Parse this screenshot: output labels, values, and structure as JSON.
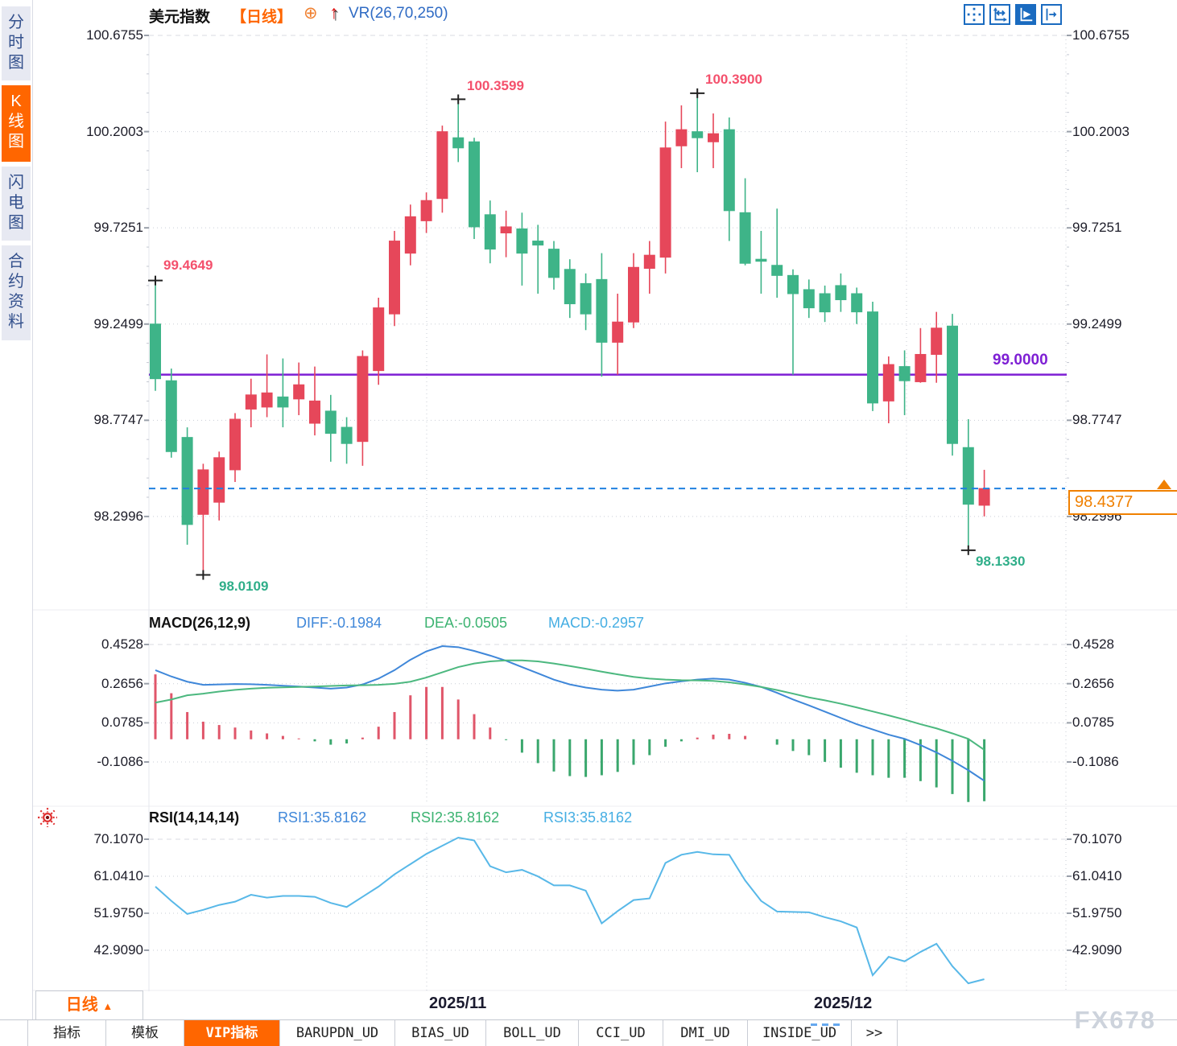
{
  "colors": {
    "up": "#e6475a",
    "down": "#3eb488, ",
    "down_fix": "#3eb488",
    "diff_line": "#3f87d9",
    "dea_line": "#4cb87f",
    "rsi_line": "#58b8e8",
    "hline_purple": "#7e1fd4",
    "dashed_blue": "#2080e0",
    "accent_orange": "#ff6600",
    "annotation_red": "#f4506c",
    "annotation_teal": "#2fae89"
  },
  "sidebar": {
    "items": [
      {
        "label": "分时图",
        "active": false
      },
      {
        "label": "K线图",
        "active": true
      },
      {
        "label": "闪电图",
        "active": false
      },
      {
        "label": "合约资料",
        "active": false
      }
    ]
  },
  "header": {
    "symbol": "美元指数",
    "period_tag": "【日线】",
    "target_icon": "⊕",
    "trend_arrow": "↑",
    "indicator_label": "VR(26,70,250)"
  },
  "toolbar": {
    "icons": [
      "pan-crosshair",
      "axis-range",
      "auto-play",
      "jump-to-latest"
    ]
  },
  "axes": {
    "main": [
      "100.6755",
      "100.2003",
      "99.7251",
      "99.2499",
      "98.7747",
      "98.2996"
    ],
    "macd": [
      "0.4528",
      "0.2656",
      "0.0785",
      "-0.1086"
    ],
    "rsi": [
      "70.1070",
      "61.0410",
      "51.9750",
      "42.9090"
    ]
  },
  "annotations": {
    "start_high": "99.4649",
    "peak1": "100.3599",
    "peak2": "100.3900",
    "low1": "98.0109",
    "low2": "98.1330",
    "hline_label": "99.0000",
    "last_price": "98.4377"
  },
  "macd_header": {
    "name": "MACD(26,12,9)",
    "diff": "DIFF:-0.1984",
    "dea": "DEA:-0.0505",
    "macd": "MACD:-0.2957"
  },
  "rsi_header": {
    "name": "RSI(14,14,14)",
    "rsi1": "RSI1:35.8162",
    "rsi2": "RSI2:35.8162",
    "rsi3": "RSI3:35.8162"
  },
  "x_labels": [
    "2025/11",
    "2025/12"
  ],
  "period_selector": {
    "label": "日线",
    "arrow": "▲"
  },
  "bottom_tabs": [
    {
      "label": "指标",
      "active": false
    },
    {
      "label": "模板",
      "active": false
    },
    {
      "label": "VIP指标",
      "active": true
    },
    {
      "label": "BARUPDN_UD",
      "active": false
    },
    {
      "label": "BIAS_UD",
      "active": false
    },
    {
      "label": "BOLL_UD",
      "active": false
    },
    {
      "label": "CCI_UD",
      "active": false
    },
    {
      "label": "DMI_UD",
      "active": false
    },
    {
      "label": "INSIDE_UD",
      "active": false
    },
    {
      "label": ">>",
      "active": false
    }
  ],
  "watermark": "FX678",
  "chart_data": {
    "type": "candlestick",
    "title": "美元指数 日线",
    "panels": [
      "price",
      "MACD",
      "RSI"
    ],
    "main": {
      "ylim": [
        97.85,
        100.6755
      ],
      "yticks": [
        100.6755,
        100.2003,
        99.7251,
        99.2499,
        98.7747,
        98.2996
      ],
      "hline": 99.0,
      "last_price": 98.4377,
      "month_gridlines": [
        "2025/11",
        "2025/12"
      ],
      "candles": [
        [
          99.25,
          98.98,
          99.4649,
          98.92
        ],
        [
          98.97,
          98.62,
          99.03,
          98.59
        ],
        [
          98.69,
          98.26,
          98.74,
          98.16
        ],
        [
          98.31,
          98.53,
          98.56,
          98.0109
        ],
        [
          98.37,
          98.59,
          98.62,
          98.28
        ],
        [
          98.53,
          98.78,
          98.81,
          98.47
        ],
        [
          98.83,
          98.9,
          98.98,
          98.74
        ],
        [
          98.84,
          98.91,
          99.1,
          98.79
        ],
        [
          98.89,
          98.84,
          99.08,
          98.74
        ],
        [
          98.88,
          98.95,
          99.06,
          98.8
        ],
        [
          98.76,
          98.87,
          99.04,
          98.7
        ],
        [
          98.82,
          98.71,
          98.9,
          98.57
        ],
        [
          98.74,
          98.66,
          98.79,
          98.56
        ],
        [
          98.67,
          99.09,
          99.12,
          98.55
        ],
        [
          99.02,
          99.33,
          99.38,
          98.95
        ],
        [
          99.3,
          99.66,
          99.71,
          99.24
        ],
        [
          99.6,
          99.78,
          99.84,
          99.54
        ],
        [
          99.76,
          99.86,
          99.9,
          99.7
        ],
        [
          99.87,
          100.2,
          100.23,
          99.8
        ],
        [
          100.17,
          100.12,
          100.3599,
          100.05
        ],
        [
          100.15,
          99.73,
          100.17,
          99.67
        ],
        [
          99.79,
          99.62,
          99.86,
          99.55
        ],
        [
          99.7,
          99.73,
          99.81,
          99.58
        ],
        [
          99.72,
          99.6,
          99.8,
          99.44
        ],
        [
          99.66,
          99.64,
          99.74,
          99.4
        ],
        [
          99.62,
          99.48,
          99.66,
          99.42
        ],
        [
          99.52,
          99.35,
          99.57,
          99.28
        ],
        [
          99.45,
          99.3,
          99.5,
          99.22
        ],
        [
          99.47,
          99.16,
          99.6,
          98.99
        ],
        [
          99.16,
          99.26,
          99.4,
          99.0
        ],
        [
          99.26,
          99.53,
          99.6,
          99.23
        ],
        [
          99.525,
          99.59,
          99.66,
          99.4
        ],
        [
          99.58,
          100.12,
          100.25,
          99.5
        ],
        [
          100.13,
          100.21,
          100.33,
          100.02
        ],
        [
          100.2,
          100.17,
          100.39,
          100.0
        ],
        [
          100.15,
          100.19,
          100.29,
          100.02
        ],
        [
          100.21,
          99.81,
          100.27,
          99.66
        ],
        [
          99.8,
          99.55,
          99.97,
          99.54
        ],
        [
          99.57,
          99.56,
          99.71,
          99.4
        ],
        [
          99.54,
          99.49,
          99.82,
          99.38
        ],
        [
          99.49,
          99.4,
          99.52,
          99.0
        ],
        [
          99.42,
          99.33,
          99.47,
          99.28
        ],
        [
          99.4,
          99.31,
          99.44,
          99.26
        ],
        [
          99.44,
          99.37,
          99.5,
          99.31
        ],
        [
          99.4,
          99.31,
          99.43,
          99.25
        ],
        [
          99.31,
          98.86,
          99.36,
          98.82
        ],
        [
          98.87,
          99.05,
          99.09,
          98.76
        ],
        [
          99.04,
          98.97,
          99.12,
          98.8
        ],
        [
          98.965,
          99.1,
          99.23,
          98.96
        ],
        [
          99.1,
          99.23,
          99.31,
          98.96
        ],
        [
          99.24,
          98.66,
          99.3,
          98.6
        ],
        [
          98.64,
          98.36,
          98.78,
          98.133
        ],
        [
          98.355,
          98.4377,
          98.53,
          98.3
        ]
      ],
      "markers": [
        {
          "i": 0,
          "price": 99.4649,
          "pos": "high"
        },
        {
          "i": 3,
          "price": 98.0109,
          "pos": "low"
        },
        {
          "i": 19,
          "price": 100.3599,
          "pos": "high"
        },
        {
          "i": 34,
          "price": 100.39,
          "pos": "high"
        },
        {
          "i": 51,
          "price": 98.133,
          "pos": "low"
        }
      ]
    },
    "macd": {
      "params": [
        26,
        12,
        9
      ],
      "diff_last": -0.1984,
      "dea_last": -0.0505,
      "macd_last": -0.2957,
      "yticks": [
        0.4528,
        0.2656,
        0.0785,
        -0.1086
      ],
      "diff": [
        0.33,
        0.3,
        0.275,
        0.26,
        0.262,
        0.264,
        0.263,
        0.26,
        0.256,
        0.252,
        0.247,
        0.242,
        0.247,
        0.262,
        0.29,
        0.33,
        0.38,
        0.42,
        0.445,
        0.44,
        0.422,
        0.4,
        0.375,
        0.345,
        0.315,
        0.285,
        0.262,
        0.247,
        0.237,
        0.232,
        0.237,
        0.252,
        0.267,
        0.277,
        0.285,
        0.29,
        0.285,
        0.27,
        0.25,
        0.222,
        0.19,
        0.162,
        0.132,
        0.102,
        0.072,
        0.047,
        0.022,
        0.002,
        -0.028,
        -0.063,
        -0.103,
        -0.148,
        -0.1984
      ],
      "dea": [
        0.175,
        0.19,
        0.21,
        0.218,
        0.228,
        0.236,
        0.242,
        0.246,
        0.248,
        0.25,
        0.252,
        0.255,
        0.257,
        0.258,
        0.26,
        0.265,
        0.275,
        0.295,
        0.32,
        0.345,
        0.362,
        0.372,
        0.377,
        0.377,
        0.372,
        0.362,
        0.35,
        0.337,
        0.323,
        0.31,
        0.298,
        0.29,
        0.285,
        0.282,
        0.281,
        0.279,
        0.272,
        0.262,
        0.25,
        0.235,
        0.218,
        0.2,
        0.186,
        0.17,
        0.152,
        0.133,
        0.114,
        0.094,
        0.072,
        0.052,
        0.028,
        0.002,
        -0.0505
      ]
    },
    "rsi": {
      "params": [
        14,
        14,
        14
      ],
      "last": 35.8162,
      "yticks": [
        70.107,
        61.041,
        51.975,
        42.909
      ],
      "values": [
        58.5,
        55.0,
        51.8,
        52.8,
        54.0,
        54.8,
        56.5,
        55.8,
        56.2,
        56.2,
        56.0,
        54.5,
        53.5,
        56.0,
        58.5,
        61.5,
        64.0,
        66.5,
        68.5,
        70.5,
        69.8,
        63.5,
        62.0,
        62.6,
        61.0,
        58.8,
        58.8,
        57.5,
        49.5,
        52.5,
        55.2,
        55.6,
        64.3,
        66.3,
        67.0,
        66.4,
        66.3,
        60.0,
        55.0,
        52.4,
        52.3,
        52.2,
        51.0,
        50.0,
        48.5,
        36.8,
        41.3,
        40.2,
        42.5,
        44.5,
        39.0,
        34.8,
        35.8162
      ]
    }
  }
}
